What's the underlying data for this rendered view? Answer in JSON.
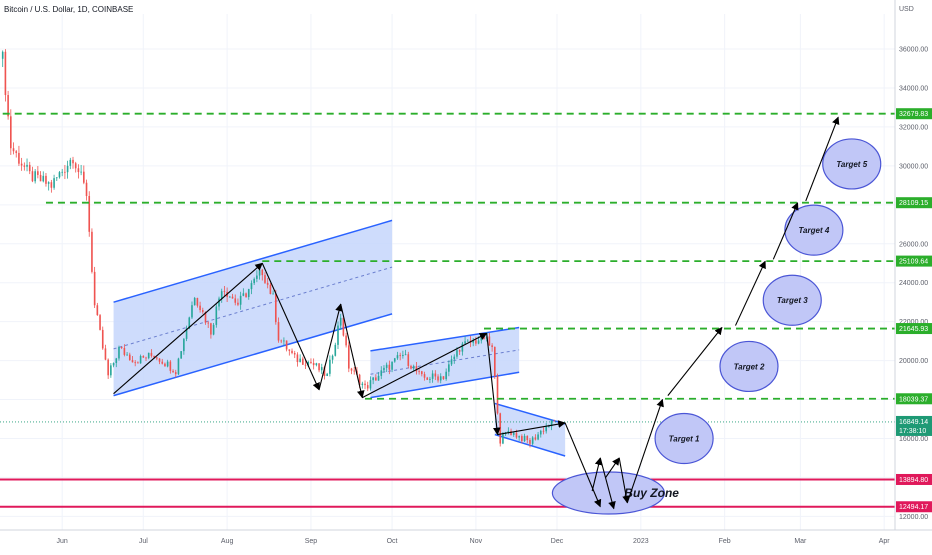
{
  "header": {
    "symbol_title": "Bitcoin / U.S. Dollar, 1D, COINBASE"
  },
  "chart_data": {
    "type": "candlestick",
    "currency_label": "USD",
    "x_labels": [
      "Jun",
      "Jul",
      "Aug",
      "Sep",
      "Oct",
      "Nov",
      "Dec",
      "2023",
      "Feb",
      "Mar",
      "Apr"
    ],
    "x_ticks": [
      "2022-06-01",
      "2022-07-01",
      "2022-08-01",
      "2022-09-01",
      "2022-10-01",
      "2022-11-01",
      "2022-12-01",
      "2023-01-01",
      "2023-02-01",
      "2023-03-01",
      "2023-04-01"
    ],
    "y_ticks": [
      12000,
      14000,
      16000,
      18000,
      20000,
      22000,
      24000,
      26000,
      28000,
      30000,
      32000,
      34000,
      36000
    ],
    "y_tick_labels": [
      "12000.00",
      "14000.00",
      "16000.00",
      "18000.00",
      "20000.00",
      "22000.00",
      "24000.00",
      "26000.00",
      "28000.00",
      "30000.00",
      "32000.00",
      "34000.00",
      "36000.00"
    ],
    "ylim": [
      11300,
      37800
    ],
    "xlim": [
      "2022-05-09",
      "2023-04-05"
    ],
    "colors": {
      "up": "#26a69a",
      "down": "#ef5350",
      "grid": "#f0f3fa",
      "level": "#2bae2b",
      "buy_zone": "#e0195b",
      "channel_stroke": "#2962ff",
      "channel_fill": "#c5d6fb",
      "ellipse_fill": "#c1c7f7",
      "ellipse_stroke": "#4b56d6",
      "current_price": "#1e9a75"
    },
    "price_path": [
      [
        "2022-05-10",
        35500
      ],
      [
        "2022-05-13",
        31000
      ],
      [
        "2022-05-20",
        29500
      ],
      [
        "2022-05-28",
        29000
      ],
      [
        "2022-06-05",
        30500
      ],
      [
        "2022-06-10",
        28600
      ],
      [
        "2022-06-13",
        22800
      ],
      [
        "2022-06-18",
        19200
      ],
      [
        "2022-06-22",
        20600
      ],
      [
        "2022-06-28",
        20000
      ],
      [
        "2022-07-05",
        20300
      ],
      [
        "2022-07-13",
        19500
      ],
      [
        "2022-07-20",
        23400
      ],
      [
        "2022-07-26",
        21500
      ],
      [
        "2022-07-30",
        23800
      ],
      [
        "2022-08-05",
        22900
      ],
      [
        "2022-08-14",
        24600
      ],
      [
        "2022-08-18",
        23200
      ],
      [
        "2022-08-20",
        21200
      ],
      [
        "2022-08-26",
        20100
      ],
      [
        "2022-09-01",
        19900
      ],
      [
        "2022-09-07",
        19200
      ],
      [
        "2022-09-12",
        22300
      ],
      [
        "2022-09-15",
        19700
      ],
      [
        "2022-09-21",
        18600
      ],
      [
        "2022-09-28",
        19500
      ],
      [
        "2022-10-05",
        20300
      ],
      [
        "2022-10-12",
        19100
      ],
      [
        "2022-10-20",
        19200
      ],
      [
        "2022-10-26",
        20700
      ],
      [
        "2022-11-04",
        21200
      ],
      [
        "2022-11-07",
        20600
      ],
      [
        "2022-11-09",
        17500
      ],
      [
        "2022-11-10",
        15900
      ],
      [
        "2022-11-13",
        16400
      ],
      [
        "2022-11-21",
        15800
      ],
      [
        "2022-11-26",
        16500
      ],
      [
        "2022-12-01",
        16950
      ]
    ],
    "horizontal_levels": [
      {
        "price": 32679.83,
        "label": "32679.83",
        "start": "2022-05-10",
        "color": "#2bae2b"
      },
      {
        "price": 28109.15,
        "label": "28109.15",
        "start": "2022-05-26",
        "color": "#2bae2b"
      },
      {
        "price": 25109.64,
        "label": "25109.64",
        "start": "2022-08-14",
        "color": "#2bae2b"
      },
      {
        "price": 21645.93,
        "label": "21645.93",
        "start": "2022-11-04",
        "color": "#2bae2b"
      },
      {
        "price": 18039.37,
        "label": "18039.37",
        "start": "2022-09-21",
        "color": "#2bae2b"
      },
      {
        "price": 13894.8,
        "label": "13894.80",
        "start": "2022-05-09",
        "color": "#e0195b"
      },
      {
        "price": 12494.17,
        "label": "12494.17",
        "start": "2022-05-09",
        "color": "#e0195b"
      }
    ],
    "current_price": {
      "price": 16849.14,
      "label": "16849.14",
      "countdown": "17:38:10"
    },
    "channels": [
      {
        "points": [
          [
            "2022-06-20",
            23000
          ],
          [
            "2022-10-01",
            27200
          ],
          [
            "2022-10-01",
            22400
          ],
          [
            "2022-06-20",
            18200
          ]
        ],
        "mid": [
          [
            "2022-06-20",
            20600
          ],
          [
            "2022-10-01",
            24800
          ]
        ]
      },
      {
        "points": [
          [
            "2022-09-23",
            20500
          ],
          [
            "2022-11-17",
            21700
          ],
          [
            "2022-11-17",
            19400
          ],
          [
            "2022-09-23",
            18100
          ]
        ],
        "mid": [
          [
            "2022-09-23",
            19300
          ],
          [
            "2022-11-17",
            20550
          ]
        ]
      },
      {
        "points": [
          [
            "2022-11-08",
            17800
          ],
          [
            "2022-12-04",
            16750
          ],
          [
            "2022-12-04",
            15100
          ],
          [
            "2022-11-08",
            16200
          ]
        ],
        "mid": null
      }
    ],
    "arrows": [
      [
        [
          "2022-06-20",
          18300
        ],
        [
          "2022-08-14",
          25000
        ]
      ],
      [
        [
          "2022-08-14",
          25000
        ],
        [
          "2022-09-04",
          18500
        ]
      ],
      [
        [
          "2022-09-04",
          18500
        ],
        [
          "2022-09-12",
          22900
        ]
      ],
      [
        [
          "2022-09-12",
          22900
        ],
        [
          "2022-09-20",
          18100
        ]
      ],
      [
        [
          "2022-09-20",
          18100
        ],
        [
          "2022-11-05",
          21400
        ]
      ],
      [
        [
          "2022-11-05",
          21400
        ],
        [
          "2022-11-09",
          16200
        ]
      ],
      [
        [
          "2022-11-09",
          16200
        ],
        [
          "2022-12-04",
          16800
        ]
      ],
      [
        [
          "2022-12-04",
          16800
        ],
        [
          "2022-12-17",
          12500
        ]
      ],
      [
        [
          "2022-12-14",
          13300
        ],
        [
          "2022-12-17",
          15000
        ]
      ],
      [
        [
          "2022-12-17",
          15000
        ],
        [
          "2022-12-22",
          12400
        ]
      ],
      [
        [
          "2022-12-19",
          14000
        ],
        [
          "2022-12-24",
          15000
        ]
      ],
      [
        [
          "2022-12-24",
          15000
        ],
        [
          "2022-12-27",
          12700
        ]
      ],
      [
        [
          "2022-12-27",
          12700
        ],
        [
          "2023-01-09",
          18000
        ]
      ],
      [
        [
          "2023-01-11",
          18200
        ],
        [
          "2023-01-31",
          21700
        ]
      ],
      [
        [
          "2023-02-05",
          21800
        ],
        [
          "2023-02-16",
          25100
        ]
      ],
      [
        [
          "2023-02-19",
          25200
        ],
        [
          "2023-02-28",
          28100
        ]
      ],
      [
        [
          "2023-03-03",
          28200
        ],
        [
          "2023-03-15",
          32500
        ]
      ]
    ],
    "annotations": [
      {
        "text": "Target 1",
        "x": "2023-01-17",
        "y": 16000
      },
      {
        "text": "Target 2",
        "x": "2023-02-10",
        "y": 19700
      },
      {
        "text": "Target 3",
        "x": "2023-02-26",
        "y": 23100
      },
      {
        "text": "Target 4",
        "x": "2023-03-06",
        "y": 26700
      },
      {
        "text": "Target 5",
        "x": "2023-03-20",
        "y": 30100
      },
      {
        "text": "Buy Zone",
        "x": "2022-12-20",
        "y": 13200,
        "kind": "ellipse-only"
      }
    ],
    "buy_zone_label": {
      "text": "Buy Zone",
      "x": "2023-01-05",
      "y": 13200
    }
  }
}
